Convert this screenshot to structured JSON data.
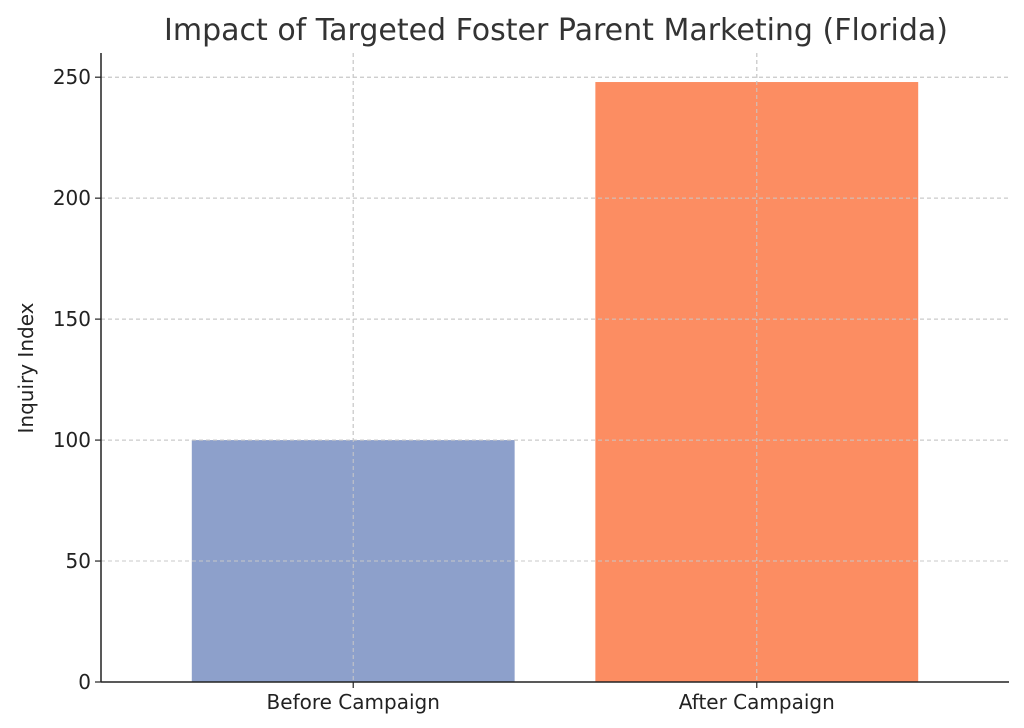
{
  "chart_data": {
    "type": "bar",
    "title": "Impact of Targeted Foster Parent Marketing (Florida)",
    "xlabel": "",
    "ylabel": "Inquiry Index",
    "categories": [
      "Before Campaign",
      "After Campaign"
    ],
    "values": [
      100,
      248
    ],
    "colors": [
      "#8da0cb",
      "#fc8d62"
    ],
    "ylim": [
      0,
      260
    ],
    "yticks": [
      0,
      50,
      100,
      150,
      200,
      250
    ],
    "grid": true,
    "legend": "none"
  }
}
